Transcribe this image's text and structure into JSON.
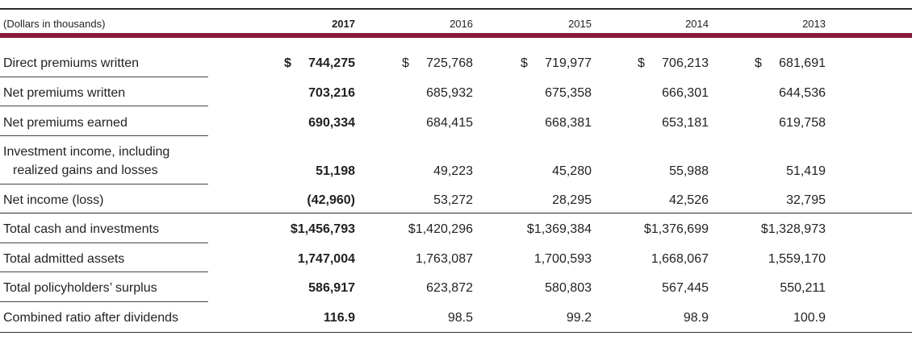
{
  "header": {
    "caption": "(Dollars in thousands)",
    "years": [
      "2017",
      "2016",
      "2015",
      "2014",
      "2013"
    ]
  },
  "rows": [
    {
      "label": "Direct premiums written",
      "dollar": "$",
      "values": [
        "744,275",
        "725,768",
        "719,977",
        "706,213",
        "681,691"
      ]
    },
    {
      "label": "Net premiums written",
      "values": [
        "703,216",
        "685,932",
        "675,358",
        "666,301",
        "644,536"
      ]
    },
    {
      "label": "Net premiums earned",
      "values": [
        "690,334",
        "684,415",
        "668,381",
        "653,181",
        "619,758"
      ]
    },
    {
      "label_line1": "Investment income, including",
      "label_line2": "realized gains and losses",
      "values": [
        "51,198",
        "49,223",
        "45,280",
        "55,988",
        "51,419"
      ]
    },
    {
      "label": "Net income (loss)",
      "values": [
        "(42,960)",
        "53,272",
        "28,295",
        "42,526",
        "32,795"
      ]
    },
    {
      "label": "Total cash and investments",
      "values": [
        "$1,456,793",
        "$1,420,296",
        "$1,369,384",
        "$1,376,699",
        "$1,328,973"
      ]
    },
    {
      "label": "Total admitted assets",
      "values": [
        "1,747,004",
        "1,763,087",
        "1,700,593",
        "1,668,067",
        "1,559,170"
      ]
    },
    {
      "label": "Total policyholders’ surplus",
      "values": [
        "586,917",
        "623,872",
        "580,803",
        "567,445",
        "550,211"
      ]
    },
    {
      "label": "Combined ratio after dividends",
      "values": [
        "116.9",
        "98.5",
        "99.2",
        "98.9",
        "100.9"
      ]
    }
  ]
}
